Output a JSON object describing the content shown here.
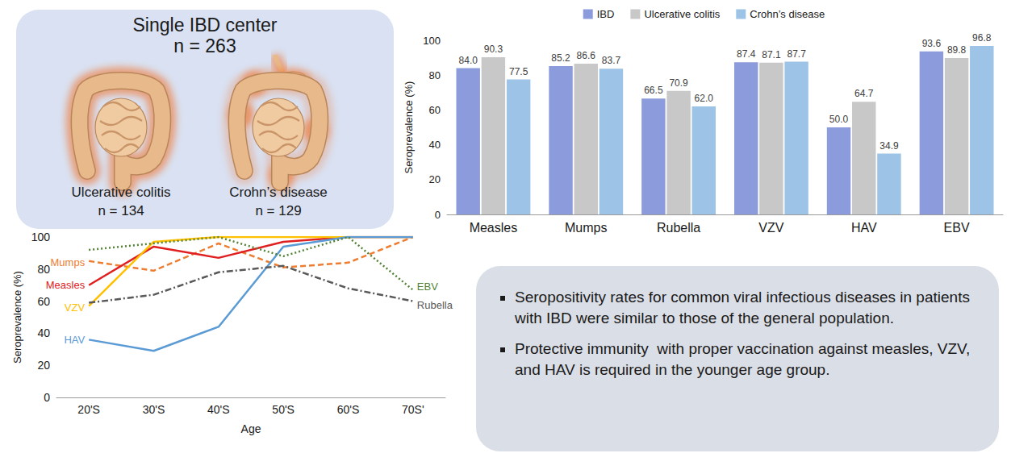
{
  "study": {
    "title": "Single IBD center",
    "total": "n = 263",
    "groups": [
      {
        "label": "Ulcerative colitis",
        "n": "n = 134"
      },
      {
        "label": "Crohn’s disease",
        "n": "n = 129"
      }
    ]
  },
  "chart_data": [
    {
      "type": "bar",
      "ylabel": "Seroprevalence (%)",
      "categories": [
        "Measles",
        "Mumps",
        "Rubella",
        "VZV",
        "HAV",
        "EBV"
      ],
      "series": [
        {
          "name": "IBD",
          "color": "#8C9BDB",
          "values": [
            84.0,
            85.2,
            66.5,
            87.4,
            50.0,
            93.6
          ],
          "value_labels": [
            "84.0",
            "85.2",
            "66.5",
            "87.4",
            "50.0",
            "93.6"
          ]
        },
        {
          "name": "Ulcerative colitis",
          "color": "#C8C8C8",
          "values": [
            90.3,
            86.6,
            70.9,
            87.1,
            64.7,
            89.8
          ],
          "value_labels": [
            "90.3",
            "86.6",
            "70.9",
            "87.1",
            "64.7",
            "89.8"
          ]
        },
        {
          "name": "Crohn’s disease",
          "color": "#9DC3E6",
          "values": [
            77.5,
            83.7,
            62.0,
            87.7,
            34.9,
            96.8
          ],
          "value_labels": [
            "77.5",
            "83.7",
            "62.0",
            "87.7",
            "34.9",
            "96.8"
          ]
        }
      ],
      "ylim": [
        0,
        100
      ],
      "yticks": [
        0,
        20,
        40,
        60,
        80,
        100
      ],
      "grid": false,
      "data_labels": true,
      "legend": "top"
    },
    {
      "type": "line",
      "xlabel": "Age",
      "ylabel": "Seroprevalence (%)",
      "marker": "none",
      "categories": [
        "20'S",
        "30'S",
        "40'S",
        "50'S",
        "60'S",
        "70S'"
      ],
      "series": [
        {
          "name": "Mumps",
          "color": "#ED7D31",
          "line_style": "dashed",
          "values": [
            85,
            79,
            96,
            81,
            84,
            100
          ]
        },
        {
          "name": "Measles",
          "color": "#E02020",
          "line_style": "solid",
          "values": [
            70,
            94,
            87,
            97,
            100,
            100
          ]
        },
        {
          "name": "VZV",
          "color": "#FFC000",
          "line_style": "solid",
          "values": [
            57,
            97,
            100,
            100,
            100,
            100
          ]
        },
        {
          "name": "HAV",
          "color": "#5B9BD5",
          "line_style": "solid",
          "values": [
            36,
            29,
            44,
            94,
            100,
            100
          ]
        },
        {
          "name": "EBV",
          "color": "#548235",
          "line_style": "dotted",
          "values": [
            92,
            96,
            100,
            88,
            100,
            67
          ]
        },
        {
          "name": "Rubella",
          "color": "#595959",
          "line_style": "dash-dot",
          "values": [
            59,
            64,
            78,
            82,
            68,
            60
          ]
        }
      ],
      "ylim": [
        0,
        100
      ],
      "yticks": [
        0,
        20,
        40,
        60,
        80,
        100
      ],
      "grid": false
    }
  ],
  "conclusions": [
    "Seropositivity rates for common viral infectious diseases in patients with IBD were similar to those of the general population.",
    "Protective immunity  with proper vaccination against measles, VZV, and HAV is required in the younger age group."
  ]
}
